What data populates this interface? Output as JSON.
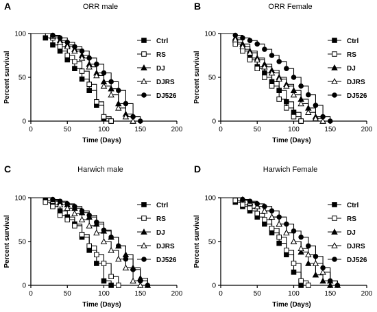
{
  "chart_data": [
    {
      "type": "line",
      "panel": "A",
      "title": "ORR male",
      "xlabel": "Time (Days)",
      "ylabel": "Percent survival",
      "xlim": [
        0,
        200
      ],
      "ylim": [
        0,
        100
      ],
      "xticks": [
        0,
        50,
        100,
        150,
        200
      ],
      "yticks": [
        0,
        50,
        100
      ],
      "legend_position": "right",
      "series": [
        {
          "name": "Ctrl",
          "marker": "filled-square",
          "x": [
            0,
            20,
            30,
            40,
            50,
            60,
            70,
            80,
            90,
            100,
            110
          ],
          "y": [
            100,
            95,
            87,
            80,
            70,
            60,
            48,
            35,
            18,
            3,
            0
          ]
        },
        {
          "name": "RS",
          "marker": "open-square",
          "x": [
            0,
            30,
            40,
            50,
            60,
            70,
            80,
            90,
            100,
            110
          ],
          "y": [
            100,
            95,
            85,
            75,
            68,
            57,
            42,
            22,
            5,
            0
          ]
        },
        {
          "name": "DJ",
          "marker": "filled-triangle",
          "x": [
            0,
            30,
            40,
            50,
            60,
            70,
            80,
            90,
            100,
            110,
            120,
            130,
            140
          ],
          "y": [
            100,
            97,
            92,
            87,
            82,
            75,
            65,
            55,
            45,
            37,
            20,
            8,
            0
          ]
        },
        {
          "name": "DJRS",
          "marker": "open-triangle",
          "x": [
            0,
            30,
            40,
            50,
            60,
            70,
            80,
            90,
            100,
            110,
            120,
            130,
            140
          ],
          "y": [
            100,
            97,
            90,
            85,
            80,
            72,
            62,
            52,
            40,
            30,
            15,
            5,
            0
          ]
        },
        {
          "name": "DJ526",
          "marker": "filled-circle",
          "x": [
            0,
            30,
            40,
            50,
            60,
            70,
            80,
            90,
            100,
            110,
            120,
            130,
            140,
            150
          ],
          "y": [
            100,
            98,
            95,
            90,
            85,
            80,
            72,
            65,
            55,
            45,
            35,
            20,
            5,
            0
          ]
        }
      ]
    },
    {
      "type": "line",
      "panel": "B",
      "title": "ORR Female",
      "xlabel": "Time (Days)",
      "ylabel": "Percent survival",
      "xlim": [
        0,
        200
      ],
      "ylim": [
        0,
        100
      ],
      "xticks": [
        0,
        50,
        100,
        150,
        200
      ],
      "yticks": [
        0,
        50,
        100
      ],
      "legend_position": "right",
      "series": [
        {
          "name": "Ctrl",
          "marker": "filled-square",
          "x": [
            0,
            20,
            30,
            40,
            50,
            60,
            70,
            80,
            90,
            100,
            110
          ],
          "y": [
            100,
            90,
            82,
            72,
            62,
            55,
            45,
            35,
            22,
            10,
            0
          ]
        },
        {
          "name": "RS",
          "marker": "open-square",
          "x": [
            0,
            20,
            30,
            40,
            50,
            60,
            70,
            80,
            90,
            100,
            110
          ],
          "y": [
            100,
            88,
            80,
            70,
            60,
            50,
            40,
            25,
            15,
            5,
            0
          ]
        },
        {
          "name": "DJ",
          "marker": "filled-triangle",
          "x": [
            0,
            20,
            30,
            40,
            50,
            60,
            70,
            80,
            90,
            100,
            110,
            120,
            130,
            140
          ],
          "y": [
            100,
            95,
            88,
            80,
            72,
            65,
            58,
            50,
            42,
            35,
            25,
            15,
            5,
            0
          ]
        },
        {
          "name": "DJRS",
          "marker": "open-triangle",
          "x": [
            0,
            20,
            30,
            40,
            50,
            60,
            70,
            80,
            90,
            100,
            110,
            120,
            130,
            140
          ],
          "y": [
            100,
            93,
            85,
            78,
            70,
            62,
            55,
            48,
            40,
            30,
            20,
            10,
            3,
            0
          ]
        },
        {
          "name": "DJ526",
          "marker": "filled-circle",
          "x": [
            0,
            20,
            30,
            40,
            50,
            60,
            70,
            80,
            90,
            100,
            110,
            120,
            130,
            140,
            150
          ],
          "y": [
            100,
            98,
            95,
            92,
            88,
            82,
            75,
            68,
            60,
            50,
            40,
            30,
            18,
            5,
            0
          ]
        }
      ]
    },
    {
      "type": "line",
      "panel": "C",
      "title": "Harwich male",
      "xlabel": "Time (Days)",
      "ylabel": "Percent survival",
      "xlim": [
        0,
        200
      ],
      "ylim": [
        0,
        100
      ],
      "xticks": [
        0,
        50,
        100,
        150,
        200
      ],
      "yticks": [
        0,
        50,
        100
      ],
      "legend_position": "right",
      "series": [
        {
          "name": "Ctrl",
          "marker": "filled-square",
          "x": [
            0,
            20,
            30,
            40,
            50,
            60,
            70,
            80,
            90,
            100,
            110
          ],
          "y": [
            100,
            97,
            92,
            85,
            78,
            70,
            55,
            40,
            25,
            5,
            0
          ]
        },
        {
          "name": "RS",
          "marker": "open-square",
          "x": [
            0,
            20,
            30,
            40,
            50,
            60,
            70,
            80,
            90,
            100,
            110,
            120
          ],
          "y": [
            100,
            95,
            90,
            80,
            75,
            68,
            58,
            45,
            35,
            25,
            10,
            0
          ]
        },
        {
          "name": "DJ",
          "marker": "filled-triangle",
          "x": [
            0,
            30,
            40,
            50,
            60,
            70,
            80,
            90,
            100,
            110,
            120,
            130,
            140,
            150,
            160
          ],
          "y": [
            100,
            97,
            95,
            92,
            88,
            83,
            78,
            70,
            62,
            55,
            45,
            35,
            20,
            8,
            0
          ]
        },
        {
          "name": "DJRS",
          "marker": "open-triangle",
          "x": [
            0,
            30,
            40,
            50,
            60,
            70,
            80,
            90,
            100,
            110,
            120,
            130,
            140,
            150
          ],
          "y": [
            100,
            96,
            92,
            88,
            82,
            75,
            68,
            60,
            50,
            40,
            30,
            20,
            5,
            0
          ]
        },
        {
          "name": "DJ526",
          "marker": "filled-circle",
          "x": [
            0,
            30,
            40,
            50,
            60,
            70,
            80,
            90,
            100,
            110,
            120,
            130,
            140,
            150,
            160
          ],
          "y": [
            100,
            98,
            96,
            93,
            90,
            85,
            80,
            72,
            63,
            55,
            45,
            30,
            18,
            5,
            0
          ]
        }
      ]
    },
    {
      "type": "line",
      "panel": "D",
      "title": "Harwich Female",
      "xlabel": "Time (Days)",
      "ylabel": "Percent survival",
      "xlim": [
        0,
        200
      ],
      "ylim": [
        0,
        100
      ],
      "xticks": [
        0,
        50,
        100,
        150,
        200
      ],
      "yticks": [
        0,
        50,
        100
      ],
      "legend_position": "right",
      "series": [
        {
          "name": "Ctrl",
          "marker": "filled-square",
          "x": [
            0,
            20,
            30,
            40,
            50,
            60,
            70,
            80,
            90,
            100,
            110
          ],
          "y": [
            100,
            95,
            90,
            85,
            78,
            70,
            60,
            48,
            35,
            15,
            0
          ]
        },
        {
          "name": "RS",
          "marker": "open-square",
          "x": [
            0,
            20,
            30,
            40,
            50,
            60,
            70,
            80,
            90,
            100,
            110,
            120
          ],
          "y": [
            100,
            97,
            92,
            88,
            82,
            75,
            65,
            55,
            40,
            25,
            5,
            0
          ]
        },
        {
          "name": "DJ",
          "marker": "filled-triangle",
          "x": [
            0,
            30,
            40,
            50,
            60,
            70,
            80,
            90,
            100,
            110,
            120,
            130,
            140,
            150
          ],
          "y": [
            100,
            98,
            95,
            90,
            85,
            78,
            70,
            60,
            50,
            38,
            25,
            12,
            5,
            0
          ]
        },
        {
          "name": "DJRS",
          "marker": "open-triangle",
          "x": [
            0,
            30,
            40,
            50,
            60,
            70,
            80,
            90,
            100,
            110,
            120,
            130,
            140,
            150,
            160
          ],
          "y": [
            100,
            97,
            94,
            90,
            85,
            78,
            70,
            60,
            50,
            42,
            35,
            25,
            15,
            5,
            0
          ]
        },
        {
          "name": "DJ526",
          "marker": "filled-circle",
          "x": [
            0,
            30,
            40,
            50,
            60,
            70,
            80,
            90,
            100,
            110,
            120,
            130,
            140,
            150,
            160
          ],
          "y": [
            100,
            98,
            96,
            93,
            90,
            85,
            78,
            70,
            62,
            55,
            45,
            33,
            20,
            5,
            0
          ]
        }
      ]
    }
  ]
}
